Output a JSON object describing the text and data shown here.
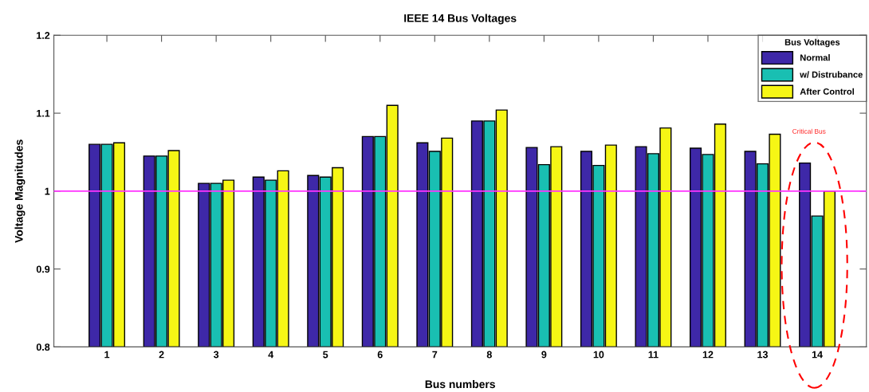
{
  "chart_data": {
    "type": "bar",
    "title": "IEEE 14 Bus Voltages",
    "xlabel": "Bus numbers",
    "ylabel": "Voltage Magnitudes",
    "categories": [
      "1",
      "2",
      "3",
      "4",
      "5",
      "6",
      "7",
      "8",
      "9",
      "10",
      "11",
      "12",
      "13",
      "14"
    ],
    "series": [
      {
        "name": "Normal",
        "color": "#3e28a8",
        "values": [
          1.06,
          1.045,
          1.01,
          1.018,
          1.02,
          1.07,
          1.062,
          1.09,
          1.056,
          1.051,
          1.057,
          1.055,
          1.051,
          1.036
        ]
      },
      {
        "name": "w/ Distrubance",
        "color": "#19bfb2",
        "values": [
          1.06,
          1.045,
          1.01,
          1.014,
          1.018,
          1.07,
          1.051,
          1.09,
          1.034,
          1.033,
          1.048,
          1.047,
          1.035,
          0.968
        ]
      },
      {
        "name": "After Control",
        "color": "#f6f615",
        "values": [
          1.062,
          1.052,
          1.014,
          1.026,
          1.03,
          1.11,
          1.068,
          1.104,
          1.057,
          1.059,
          1.081,
          1.086,
          1.073,
          1.0
        ]
      }
    ],
    "ylim": [
      0.8,
      1.2
    ],
    "yticks": [
      0.8,
      0.9,
      1,
      1.1,
      1.2
    ],
    "ref_lines": [
      {
        "axis": "y",
        "value": 1.0,
        "color": "#ff33ff"
      }
    ],
    "annotations": [
      "Critical Bus"
    ],
    "legend": "top right",
    "legend_title": "Bus Voltages",
    "grid": false
  }
}
